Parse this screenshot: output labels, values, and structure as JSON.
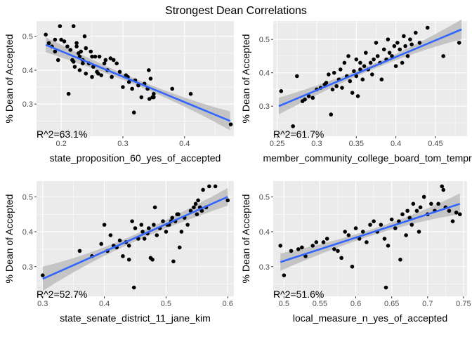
{
  "page_title": "Strongest Dean Correlations",
  "ylabel": "% Dean of Accepted",
  "colors": {
    "panel_bg": "#ebebeb",
    "grid": "#ffffff",
    "point": "#000000",
    "fit_line": "#3366ff",
    "ribbon": "#bdbdbd",
    "tick_text": "#4d4d4d",
    "axis_text": "#000000"
  },
  "chart_data": [
    {
      "type": "scatter",
      "xlabel": "state_proposition_60_yes_of_accepted",
      "ylabel": "% Dean of Accepted",
      "annotation": "R^2=63.1%",
      "xlim": [
        0.16,
        0.48
      ],
      "ylim": [
        0.205,
        0.545
      ],
      "x_ticks": [
        0.2,
        0.3,
        0.4
      ],
      "y_ticks": [
        0.3,
        0.4,
        0.5
      ],
      "grid": true,
      "fit": {
        "x": [
          0.175,
          0.474
        ],
        "y": [
          0.475,
          0.25
        ],
        "band_half_width_ends": [
          0.022,
          0.028
        ],
        "band_half_width_mid": 0.009
      },
      "points": [
        [
          0.175,
          0.505
        ],
        [
          0.18,
          0.48
        ],
        [
          0.185,
          0.47
        ],
        [
          0.19,
          0.49
        ],
        [
          0.19,
          0.455
        ],
        [
          0.195,
          0.43
        ],
        [
          0.198,
          0.53
        ],
        [
          0.2,
          0.49
        ],
        [
          0.205,
          0.485
        ],
        [
          0.21,
          0.47
        ],
        [
          0.212,
          0.33
        ],
        [
          0.215,
          0.46
        ],
        [
          0.218,
          0.43
        ],
        [
          0.22,
          0.53
        ],
        [
          0.22,
          0.425
        ],
        [
          0.222,
          0.41
        ],
        [
          0.225,
          0.48
        ],
        [
          0.225,
          0.47
        ],
        [
          0.228,
          0.45
        ],
        [
          0.23,
          0.4
        ],
        [
          0.23,
          0.44
        ],
        [
          0.232,
          0.455
        ],
        [
          0.235,
          0.42
        ],
        [
          0.235,
          0.43
        ],
        [
          0.238,
          0.5
        ],
        [
          0.24,
          0.465
        ],
        [
          0.24,
          0.39
        ],
        [
          0.245,
          0.42
        ],
        [
          0.248,
          0.455
        ],
        [
          0.25,
          0.44
        ],
        [
          0.25,
          0.38
        ],
        [
          0.252,
          0.41
        ],
        [
          0.255,
          0.44
        ],
        [
          0.258,
          0.395
        ],
        [
          0.26,
          0.39
        ],
        [
          0.262,
          0.44
        ],
        [
          0.265,
          0.385
        ],
        [
          0.27,
          0.42
        ],
        [
          0.272,
          0.43
        ],
        [
          0.275,
          0.4
        ],
        [
          0.28,
          0.435
        ],
        [
          0.282,
          0.38
        ],
        [
          0.285,
          0.43
        ],
        [
          0.29,
          0.42
        ],
        [
          0.295,
          0.395
        ],
        [
          0.3,
          0.35
        ],
        [
          0.305,
          0.385
        ],
        [
          0.308,
          0.38
        ],
        [
          0.31,
          0.365
        ],
        [
          0.315,
          0.345
        ],
        [
          0.318,
          0.275
        ],
        [
          0.32,
          0.37
        ],
        [
          0.325,
          0.355
        ],
        [
          0.33,
          0.32
        ],
        [
          0.335,
          0.36
        ],
        [
          0.34,
          0.345
        ],
        [
          0.342,
          0.4
        ],
        [
          0.343,
          0.315
        ],
        [
          0.345,
          0.375
        ],
        [
          0.348,
          0.32
        ],
        [
          0.35,
          0.32
        ],
        [
          0.35,
          0.33
        ],
        [
          0.38,
          0.345
        ],
        [
          0.41,
          0.33
        ],
        [
          0.475,
          0.24
        ]
      ]
    },
    {
      "type": "scatter",
      "xlabel": "member_community_college_board_tom_tempra",
      "ylabel": "% Dean of Accepted",
      "annotation": "R^2=61.7%",
      "xlim": [
        0.245,
        0.49
      ],
      "ylim": [
        0.21,
        0.555
      ],
      "x_ticks": [
        0.25,
        0.3,
        0.35,
        0.4,
        0.45
      ],
      "y_ticks": [
        0.3,
        0.4,
        0.5
      ],
      "grid": true,
      "fit": {
        "x": [
          0.252,
          0.483
        ],
        "y": [
          0.3,
          0.53
        ],
        "band_half_width_ends": [
          0.025,
          0.03
        ],
        "band_half_width_mid": 0.008
      },
      "points": [
        [
          0.255,
          0.345
        ],
        [
          0.27,
          0.24
        ],
        [
          0.275,
          0.39
        ],
        [
          0.282,
          0.315
        ],
        [
          0.285,
          0.32
        ],
        [
          0.29,
          0.33
        ],
        [
          0.295,
          0.325
        ],
        [
          0.3,
          0.35
        ],
        [
          0.305,
          0.355
        ],
        [
          0.31,
          0.365
        ],
        [
          0.312,
          0.37
        ],
        [
          0.315,
          0.395
        ],
        [
          0.318,
          0.275
        ],
        [
          0.32,
          0.35
        ],
        [
          0.322,
          0.4
        ],
        [
          0.325,
          0.36
        ],
        [
          0.328,
          0.38
        ],
        [
          0.33,
          0.41
        ],
        [
          0.332,
          0.355
        ],
        [
          0.335,
          0.43
        ],
        [
          0.338,
          0.39
        ],
        [
          0.34,
          0.45
        ],
        [
          0.342,
          0.375
        ],
        [
          0.345,
          0.34
        ],
        [
          0.347,
          0.405
        ],
        [
          0.35,
          0.44
        ],
        [
          0.35,
          0.39
        ],
        [
          0.352,
          0.33
        ],
        [
          0.355,
          0.41
        ],
        [
          0.355,
          0.43
        ],
        [
          0.358,
          0.38
        ],
        [
          0.36,
          0.42
        ],
        [
          0.362,
          0.46
        ],
        [
          0.365,
          0.41
        ],
        [
          0.368,
          0.43
        ],
        [
          0.37,
          0.395
        ],
        [
          0.372,
          0.44
        ],
        [
          0.375,
          0.49
        ],
        [
          0.377,
          0.45
        ],
        [
          0.38,
          0.43
        ],
        [
          0.382,
          0.38
        ],
        [
          0.385,
          0.47
        ],
        [
          0.388,
          0.44
        ],
        [
          0.39,
          0.5
        ],
        [
          0.392,
          0.46
        ],
        [
          0.395,
          0.45
        ],
        [
          0.398,
          0.48
        ],
        [
          0.4,
          0.42
        ],
        [
          0.402,
          0.49
        ],
        [
          0.405,
          0.47
        ],
        [
          0.408,
          0.43
        ],
        [
          0.41,
          0.51
        ],
        [
          0.412,
          0.48
        ],
        [
          0.415,
          0.45
        ],
        [
          0.418,
          0.5
        ],
        [
          0.42,
          0.485
        ],
        [
          0.425,
          0.52
        ],
        [
          0.43,
          0.49
        ],
        [
          0.44,
          0.535
        ],
        [
          0.46,
          0.45
        ],
        [
          0.48,
          0.49
        ]
      ]
    },
    {
      "type": "scatter",
      "xlabel": "state_senate_district_11_jane_kim",
      "ylabel": "% Dean of Accepted",
      "annotation": "R^2=52.7%",
      "xlim": [
        0.29,
        0.61
      ],
      "ylim": [
        0.215,
        0.545
      ],
      "x_ticks": [
        0.3,
        0.4,
        0.5,
        0.6
      ],
      "y_ticks": [
        0.3,
        0.4,
        0.5
      ],
      "grid": true,
      "fit": {
        "x": [
          0.3,
          0.6
        ],
        "y": [
          0.265,
          0.5
        ],
        "band_half_width_ends": [
          0.035,
          0.025
        ],
        "band_half_width_mid": 0.01
      },
      "points": [
        [
          0.3,
          0.275
        ],
        [
          0.36,
          0.345
        ],
        [
          0.38,
          0.33
        ],
        [
          0.395,
          0.365
        ],
        [
          0.4,
          0.42
        ],
        [
          0.405,
          0.345
        ],
        [
          0.41,
          0.39
        ],
        [
          0.415,
          0.36
        ],
        [
          0.42,
          0.355
        ],
        [
          0.425,
          0.375
        ],
        [
          0.43,
          0.33
        ],
        [
          0.435,
          0.37
        ],
        [
          0.44,
          0.36
        ],
        [
          0.44,
          0.32
        ],
        [
          0.445,
          0.43
        ],
        [
          0.448,
          0.24
        ],
        [
          0.45,
          0.41
        ],
        [
          0.455,
          0.38
        ],
        [
          0.46,
          0.42
        ],
        [
          0.462,
          0.4
        ],
        [
          0.465,
          0.38
        ],
        [
          0.47,
          0.395
        ],
        [
          0.472,
          0.41
        ],
        [
          0.475,
          0.325
        ],
        [
          0.478,
          0.32
        ],
        [
          0.48,
          0.42
        ],
        [
          0.482,
          0.47
        ],
        [
          0.485,
          0.39
        ],
        [
          0.49,
          0.41
        ],
        [
          0.495,
          0.43
        ],
        [
          0.5,
          0.4
        ],
        [
          0.502,
          0.42
        ],
        [
          0.505,
          0.42
        ],
        [
          0.508,
          0.43
        ],
        [
          0.51,
          0.44
        ],
        [
          0.512,
          0.315
        ],
        [
          0.515,
          0.43
        ],
        [
          0.518,
          0.45
        ],
        [
          0.52,
          0.45
        ],
        [
          0.522,
          0.355
        ],
        [
          0.525,
          0.4
        ],
        [
          0.53,
          0.44
        ],
        [
          0.535,
          0.42
        ],
        [
          0.54,
          0.46
        ],
        [
          0.545,
          0.47
        ],
        [
          0.548,
          0.48
        ],
        [
          0.55,
          0.45
        ],
        [
          0.552,
          0.49
        ],
        [
          0.555,
          0.47
        ],
        [
          0.558,
          0.46
        ],
        [
          0.56,
          0.52
        ],
        [
          0.565,
          0.47
        ],
        [
          0.57,
          0.53
        ],
        [
          0.58,
          0.53
        ],
        [
          0.6,
          0.49
        ]
      ]
    },
    {
      "type": "scatter",
      "xlabel": "local_measure_n_yes_of_accepted",
      "ylabel": "% Dean of Accepted",
      "annotation": "R^2=51.6%",
      "xlim": [
        0.485,
        0.755
      ],
      "ylim": [
        0.215,
        0.545
      ],
      "x_ticks": [
        0.5,
        0.55,
        0.6,
        0.65,
        0.7,
        0.75
      ],
      "y_ticks": [
        0.3,
        0.4,
        0.5
      ],
      "grid": true,
      "fit": {
        "x": [
          0.495,
          0.745
        ],
        "y": [
          0.313,
          0.48
        ],
        "band_half_width_ends": [
          0.025,
          0.03
        ],
        "band_half_width_mid": 0.009
      },
      "points": [
        [
          0.495,
          0.36
        ],
        [
          0.5,
          0.275
        ],
        [
          0.51,
          0.345
        ],
        [
          0.52,
          0.35
        ],
        [
          0.525,
          0.355
        ],
        [
          0.53,
          0.33
        ],
        [
          0.54,
          0.36
        ],
        [
          0.545,
          0.37
        ],
        [
          0.555,
          0.37
        ],
        [
          0.56,
          0.38
        ],
        [
          0.57,
          0.35
        ],
        [
          0.575,
          0.345
        ],
        [
          0.58,
          0.325
        ],
        [
          0.585,
          0.4
        ],
        [
          0.59,
          0.39
        ],
        [
          0.595,
          0.3
        ],
        [
          0.6,
          0.41
        ],
        [
          0.605,
          0.38
        ],
        [
          0.61,
          0.4
        ],
        [
          0.615,
          0.37
        ],
        [
          0.62,
          0.42
        ],
        [
          0.625,
          0.43
        ],
        [
          0.63,
          0.4
        ],
        [
          0.635,
          0.42
        ],
        [
          0.64,
          0.38
        ],
        [
          0.642,
          0.24
        ],
        [
          0.645,
          0.36
        ],
        [
          0.65,
          0.435
        ],
        [
          0.655,
          0.41
        ],
        [
          0.66,
          0.43
        ],
        [
          0.662,
          0.32
        ],
        [
          0.665,
          0.45
        ],
        [
          0.67,
          0.39
        ],
        [
          0.672,
          0.46
        ],
        [
          0.675,
          0.44
        ],
        [
          0.678,
          0.42
        ],
        [
          0.68,
          0.48
        ],
        [
          0.685,
          0.46
        ],
        [
          0.688,
          0.4
        ],
        [
          0.69,
          0.47
        ],
        [
          0.695,
          0.5
        ],
        [
          0.7,
          0.45
        ],
        [
          0.705,
          0.48
        ],
        [
          0.71,
          0.46
        ],
        [
          0.715,
          0.48
        ],
        [
          0.72,
          0.53
        ],
        [
          0.722,
          0.52
        ],
        [
          0.725,
          0.47
        ],
        [
          0.73,
          0.46
        ],
        [
          0.735,
          0.43
        ],
        [
          0.74,
          0.455
        ],
        [
          0.745,
          0.45
        ]
      ]
    }
  ]
}
